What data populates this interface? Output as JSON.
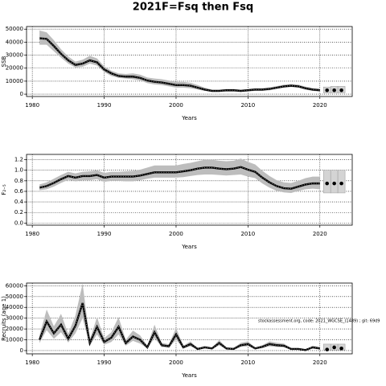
{
  "title": "2021F=Fsq then Fsq",
  "chart_data": [
    {
      "type": "line",
      "ylabel": "SSB",
      "xlabel": "Years",
      "x": [
        1981,
        1982,
        1983,
        1984,
        1985,
        1986,
        1987,
        1988,
        1989,
        1990,
        1991,
        1992,
        1993,
        1994,
        1995,
        1996,
        1997,
        1998,
        1999,
        2000,
        2001,
        2002,
        2003,
        2004,
        2005,
        2006,
        2007,
        2008,
        2009,
        2010,
        2011,
        2012,
        2013,
        2014,
        2015,
        2016,
        2017,
        2018,
        2019,
        2020
      ],
      "values": [
        43000,
        42500,
        37000,
        31000,
        26000,
        22500,
        23500,
        26000,
        24500,
        19000,
        16000,
        14000,
        13500,
        13500,
        12500,
        10500,
        9500,
        9000,
        8000,
        7000,
        7000,
        6500,
        5000,
        3500,
        2500,
        2500,
        3000,
        3000,
        2500,
        3000,
        3500,
        3500,
        4000,
        5000,
        6000,
        6500,
        6000,
        4500,
        3500,
        3000
      ],
      "lower": [
        38000,
        38000,
        33000,
        28000,
        23500,
        20500,
        21000,
        23500,
        22000,
        17000,
        14000,
        12500,
        12000,
        11500,
        10500,
        8500,
        7500,
        7000,
        6000,
        5000,
        5000,
        4500,
        3500,
        2500,
        1800,
        1800,
        2000,
        2000,
        1700,
        2000,
        2500,
        2500,
        3000,
        4000,
        5000,
        5500,
        5000,
        3500,
        2500,
        2000
      ],
      "upper": [
        49000,
        47500,
        41500,
        34500,
        29000,
        25000,
        26500,
        29500,
        27500,
        21500,
        18000,
        16000,
        15500,
        16000,
        15000,
        12800,
        12000,
        11500,
        10500,
        9500,
        9500,
        8800,
        7000,
        5000,
        3500,
        3500,
        4000,
        4000,
        3500,
        4000,
        4700,
        4700,
        5200,
        6200,
        7300,
        7800,
        7300,
        5800,
        4700,
        4200
      ],
      "projection": {
        "x": [
          2021,
          2022,
          2023
        ],
        "values": [
          3000,
          3000,
          3000
        ],
        "lower": [
          1000,
          1000,
          1000
        ],
        "upper": [
          5500,
          6000,
          6000
        ]
      },
      "xlim": [
        1979.2,
        2024.5
      ],
      "xticks": [
        1980,
        1990,
        2000,
        2010,
        2020
      ],
      "ylim": [
        -1800,
        52000
      ],
      "yticks": [
        0,
        10000,
        20000,
        30000,
        40000,
        50000
      ],
      "grid": true
    },
    {
      "type": "line",
      "ylabel": "F₂₋₅",
      "xlabel": "Years",
      "x": [
        1981,
        1982,
        1983,
        1984,
        1985,
        1986,
        1987,
        1988,
        1989,
        1990,
        1991,
        1992,
        1993,
        1994,
        1995,
        1996,
        1997,
        1998,
        1999,
        2000,
        2001,
        2002,
        2003,
        2004,
        2005,
        2006,
        2007,
        2008,
        2009,
        2010,
        2011,
        2012,
        2013,
        2014,
        2015,
        2016,
        2017,
        2018,
        2019,
        2020
      ],
      "values": [
        0.67,
        0.7,
        0.76,
        0.83,
        0.89,
        0.86,
        0.89,
        0.89,
        0.91,
        0.86,
        0.88,
        0.88,
        0.88,
        0.88,
        0.9,
        0.93,
        0.96,
        0.96,
        0.96,
        0.96,
        0.98,
        1.0,
        1.03,
        1.05,
        1.05,
        1.03,
        1.02,
        1.03,
        1.06,
        1.01,
        0.97,
        0.86,
        0.77,
        0.7,
        0.66,
        0.65,
        0.69,
        0.73,
        0.75,
        0.75
      ],
      "lower": [
        0.62,
        0.64,
        0.69,
        0.76,
        0.82,
        0.79,
        0.81,
        0.81,
        0.83,
        0.78,
        0.8,
        0.8,
        0.79,
        0.79,
        0.81,
        0.84,
        0.86,
        0.86,
        0.86,
        0.86,
        0.87,
        0.89,
        0.91,
        0.92,
        0.92,
        0.91,
        0.9,
        0.91,
        0.92,
        0.88,
        0.85,
        0.75,
        0.67,
        0.61,
        0.58,
        0.57,
        0.61,
        0.64,
        0.65,
        0.64
      ],
      "upper": [
        0.73,
        0.77,
        0.84,
        0.91,
        0.97,
        0.94,
        0.97,
        0.98,
        1.0,
        0.95,
        0.97,
        0.97,
        0.98,
        0.99,
        1.01,
        1.05,
        1.09,
        1.09,
        1.09,
        1.09,
        1.12,
        1.14,
        1.17,
        1.2,
        1.2,
        1.18,
        1.17,
        1.18,
        1.22,
        1.16,
        1.11,
        0.99,
        0.89,
        0.81,
        0.77,
        0.76,
        0.8,
        0.85,
        0.88,
        0.88
      ],
      "projection": {
        "x": [
          2021,
          2022,
          2023
        ],
        "values": [
          0.75,
          0.75,
          0.75
        ],
        "lower": [
          0.57,
          0.57,
          0.57
        ],
        "upper": [
          1.0,
          1.0,
          1.0
        ]
      },
      "xlim": [
        1979.2,
        2024.5
      ],
      "xticks": [
        1980,
        1990,
        2000,
        2010,
        2020
      ],
      "ylim": [
        -0.04,
        1.3
      ],
      "yticks": [
        {
          "value": 0,
          "label": "0.0"
        },
        0.2,
        0.4,
        0.6,
        0.8,
        {
          "value": 1,
          "label": "1.0"
        },
        1.2
      ],
      "grid": true
    },
    {
      "type": "line",
      "ylabel": "Recruits (age 1)",
      "xlabel": "Years",
      "annotation": "stockassessment.org, code: 2021_WGCSE_(1489) ; git: 69d9",
      "x": [
        1981,
        1982,
        1983,
        1984,
        1985,
        1986,
        1987,
        1988,
        1989,
        1990,
        1991,
        1992,
        1993,
        1994,
        1995,
        1996,
        1997,
        1998,
        1999,
        2000,
        2001,
        2002,
        2003,
        2004,
        2005,
        2006,
        2007,
        2008,
        2009,
        2010,
        2011,
        2012,
        2013,
        2014,
        2015,
        2016,
        2017,
        2018,
        2019,
        2020
      ],
      "values": [
        10000,
        27000,
        16000,
        24000,
        11000,
        23000,
        44000,
        7000,
        22000,
        8000,
        12000,
        22000,
        7000,
        13000,
        10000,
        3000,
        17000,
        5000,
        4000,
        15000,
        3000,
        6000,
        1500,
        3000,
        2000,
        7000,
        2000,
        1500,
        5000,
        6000,
        2000,
        3500,
        6000,
        5000,
        4500,
        1500,
        1500,
        500,
        3000,
        2000
      ],
      "lower": [
        7000,
        19000,
        11000,
        17000,
        7500,
        16000,
        30000,
        4500,
        15000,
        5500,
        8000,
        15000,
        4500,
        9000,
        6500,
        2000,
        11500,
        3300,
        2700,
        10000,
        2000,
        4000,
        1000,
        2000,
        1300,
        4800,
        1300,
        1000,
        3400,
        4000,
        1300,
        2300,
        4000,
        3300,
        3000,
        1000,
        1000,
        300,
        1800,
        1100
      ],
      "upper": [
        14000,
        38000,
        22500,
        34000,
        15500,
        32500,
        62000,
        10000,
        31000,
        11500,
        17000,
        31000,
        10000,
        18500,
        14000,
        4500,
        24000,
        7200,
        5800,
        21000,
        4500,
        8500,
        2200,
        4300,
        2900,
        9800,
        2900,
        2200,
        7200,
        8500,
        2900,
        5000,
        8500,
        7200,
        6500,
        2200,
        2200,
        800,
        4500,
        3200
      ],
      "projection": {
        "x": [
          2021,
          2022,
          2023
        ],
        "values": [
          1000,
          3000,
          2000
        ],
        "lower": [
          500,
          500,
          500
        ],
        "upper": [
          6000,
          6000,
          6000
        ]
      },
      "xlim": [
        1979.2,
        2024.5
      ],
      "xticks": [
        1980,
        1990,
        2000,
        2010,
        2020
      ],
      "ylim": [
        -3000,
        62500
      ],
      "yticks": [
        0,
        10000,
        20000,
        30000,
        40000,
        50000,
        60000
      ],
      "grid": true
    }
  ]
}
